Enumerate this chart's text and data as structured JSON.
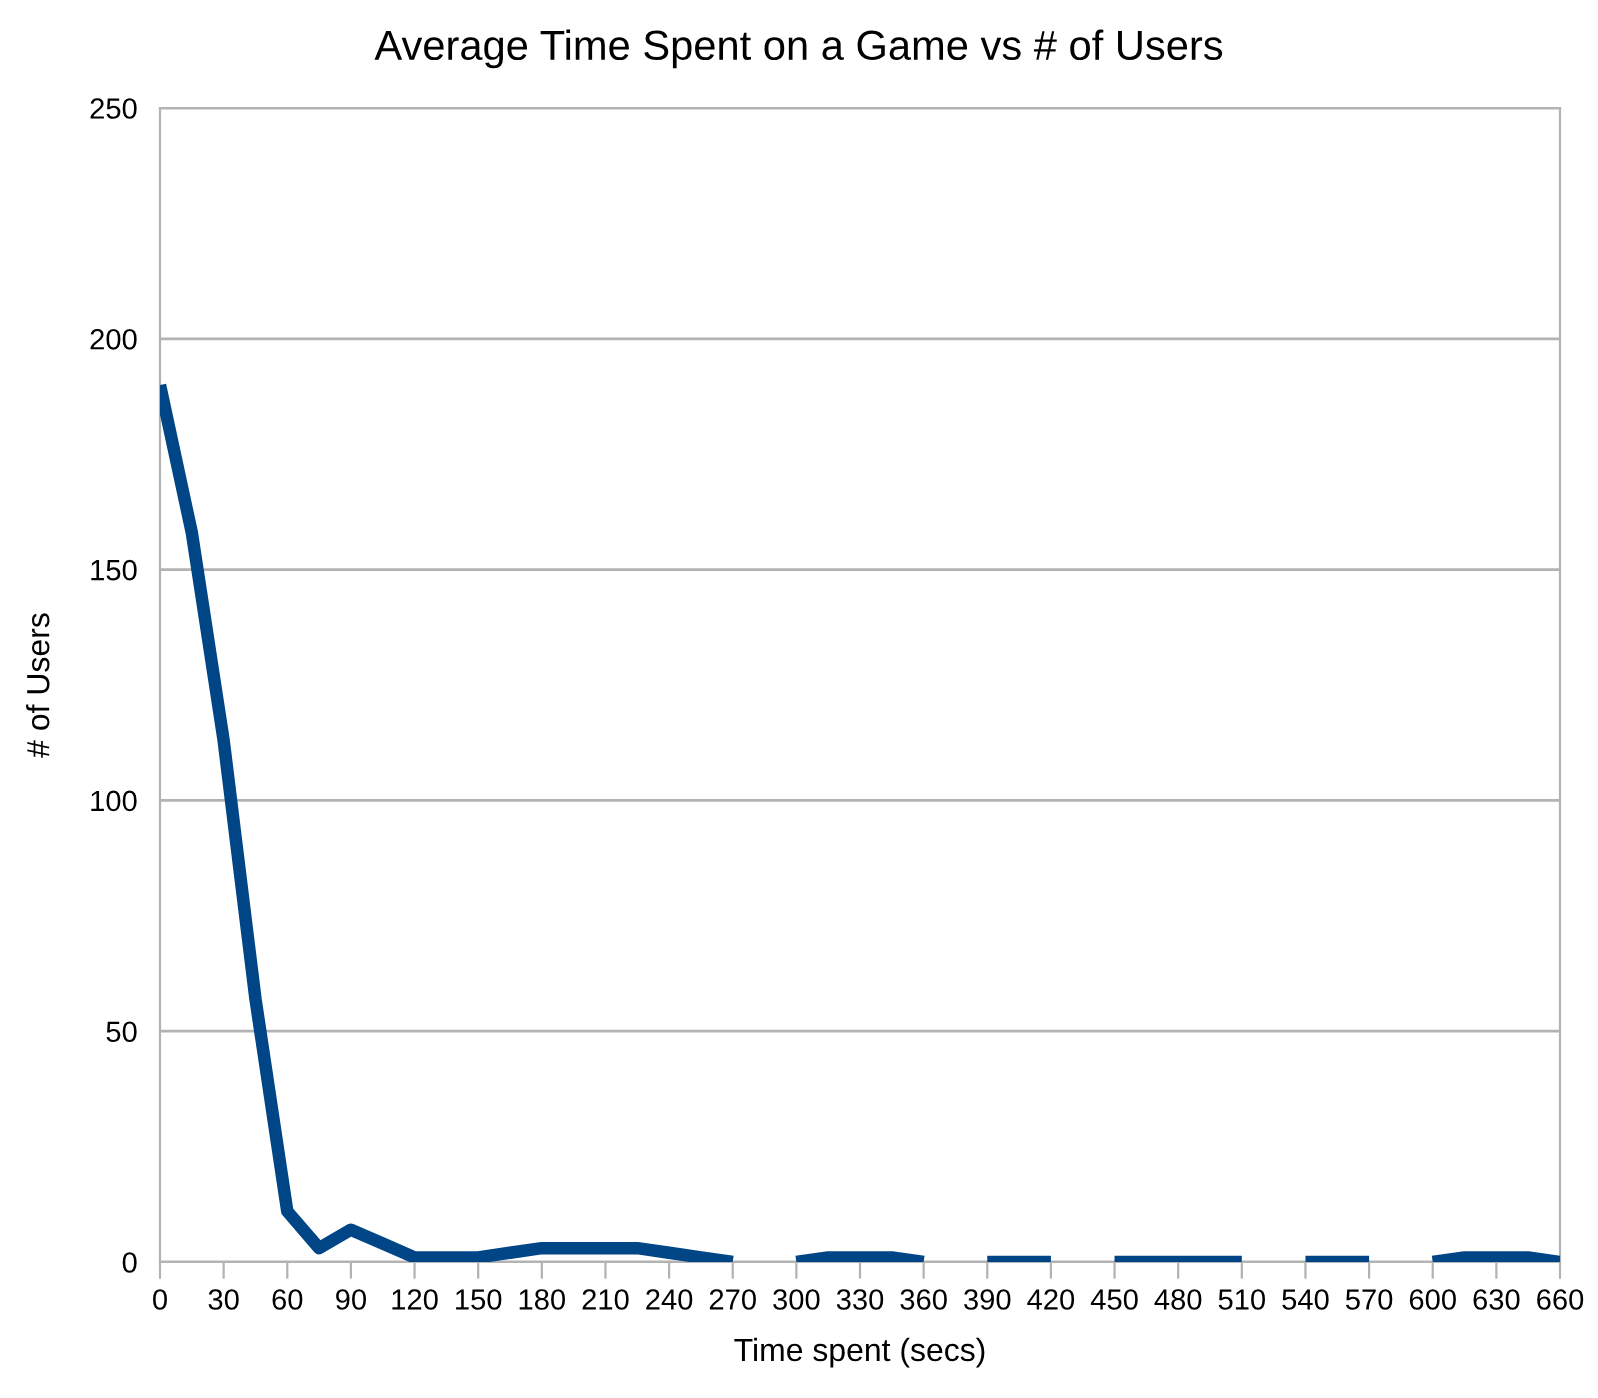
{
  "chart_data": {
    "type": "line",
    "title": "Average Time Spent on a Game vs # of Users",
    "xlabel": "Time spent (secs)",
    "ylabel": "# of Users",
    "x": [
      0,
      15,
      30,
      45,
      60,
      75,
      90,
      105,
      120,
      135,
      150,
      165,
      180,
      195,
      210,
      225,
      240,
      255,
      270,
      285,
      300,
      315,
      330,
      345,
      360,
      375,
      390,
      405,
      420,
      435,
      450,
      465,
      480,
      495,
      510,
      525,
      540,
      555,
      570,
      585,
      600,
      615,
      630,
      645,
      660
    ],
    "series": [
      {
        "color": "#004586",
        "values": [
          190,
          158,
          113,
          57,
          11,
          3,
          7,
          4,
          1,
          1,
          1,
          2,
          3,
          3,
          3,
          3,
          2,
          1,
          0,
          null,
          0,
          1,
          1,
          1,
          0,
          null,
          0,
          0,
          0,
          null,
          0,
          0,
          0,
          0,
          0,
          null,
          0,
          0,
          0,
          null,
          0,
          1,
          1,
          1,
          0
        ]
      }
    ],
    "xlim": [
      0,
      660
    ],
    "xticks": [
      0,
      30,
      60,
      90,
      120,
      150,
      180,
      210,
      240,
      270,
      300,
      330,
      360,
      390,
      420,
      450,
      480,
      510,
      540,
      570,
      600,
      630,
      660
    ],
    "ylim": [
      0,
      250
    ],
    "yticks": [
      0,
      50,
      100,
      150,
      200,
      250
    ],
    "grid": "y",
    "line_style": "solid"
  }
}
